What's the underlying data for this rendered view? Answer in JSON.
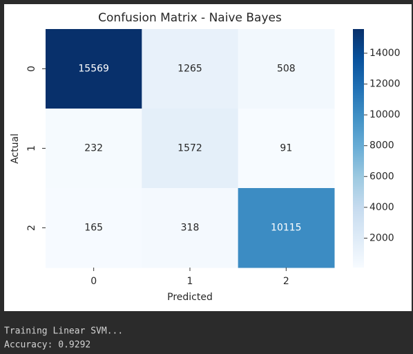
{
  "chart_data": {
    "type": "heatmap",
    "title": "Confusion Matrix - Naive Bayes",
    "x_label": "Predicted",
    "y_label": "Actual",
    "x_categories": [
      "0",
      "1",
      "2"
    ],
    "y_categories": [
      "0",
      "1",
      "2"
    ],
    "z": [
      [
        15569,
        1265,
        508
      ],
      [
        232,
        1572,
        91
      ],
      [
        165,
        318,
        10115
      ]
    ],
    "zlim": [
      91,
      15569
    ],
    "zticks": [
      2000,
      4000,
      6000,
      8000,
      10000,
      12000,
      14000
    ],
    "colorscale": [
      "#f7fbff",
      "#deebf7",
      "#c6dbef",
      "#9ecae1",
      "#6baed6",
      "#4292c6",
      "#2171b5",
      "#08519c",
      "#08306b"
    ]
  },
  "console": [
    "Training Linear SVM...",
    "Accuracy: 0.9292"
  ]
}
